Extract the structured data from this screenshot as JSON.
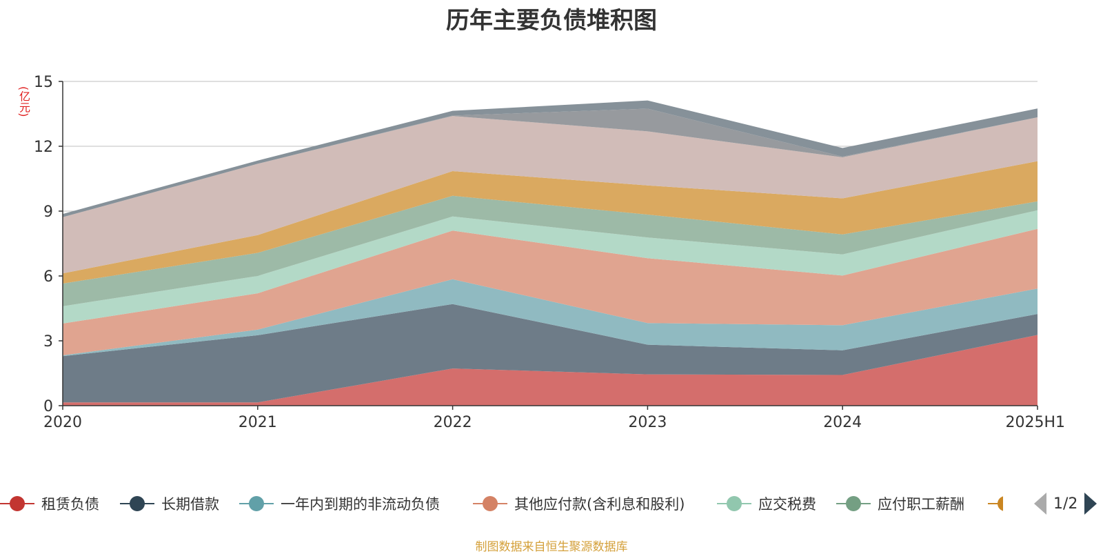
{
  "title": "历年主要负债堆积图",
  "unit": "(亿元)",
  "source": "制图数据来自恒生聚源数据库",
  "pager": {
    "current": "1/2"
  },
  "legend": [
    {
      "name": "租赁负债",
      "color": "#c23531"
    },
    {
      "name": "长期借款",
      "color": "#2f4554"
    },
    {
      "name": "一年内到期的非流动负债",
      "color": "#61a0a8"
    },
    {
      "name": "其他应付款(含利息和股利)",
      "color": "#d48265"
    },
    {
      "name": "应交税费",
      "color": "#91c7ae"
    },
    {
      "name": "应付职工薪酬",
      "color": "#749f83"
    },
    {
      "name": "",
      "color": "#ca8622"
    }
  ],
  "chart_data": {
    "type": "area",
    "stacked": true,
    "categories": [
      "2020",
      "2021",
      "2022",
      "2023",
      "2024",
      "2025H1"
    ],
    "ylim": [
      0,
      15
    ],
    "yticks": [
      0,
      3,
      6,
      9,
      12,
      15
    ],
    "grid": true,
    "legend_position": "bottom",
    "series": [
      {
        "name": "租赁负债",
        "color": "#d46e6c",
        "values": [
          0.15,
          0.15,
          1.72,
          1.45,
          1.42,
          3.27
        ]
      },
      {
        "name": "长期借款",
        "color": "#6e7c88",
        "values": [
          2.14,
          3.11,
          2.98,
          1.37,
          1.14,
          0.97
        ]
      },
      {
        "name": "一年内到期的非流动负债",
        "color": "#90bac1",
        "values": [
          0.04,
          0.26,
          1.15,
          1.0,
          1.16,
          1.18
        ]
      },
      {
        "name": "其他应付款(含利息和股利)",
        "color": "#e0a490",
        "values": [
          1.47,
          1.68,
          2.25,
          3.0,
          2.3,
          2.76
        ]
      },
      {
        "name": "应交税费",
        "color": "#b3d9c7",
        "values": [
          0.8,
          0.8,
          0.65,
          0.96,
          0.98,
          0.86
        ]
      },
      {
        "name": "应付职工薪酬",
        "color": "#9dbaa7",
        "values": [
          1.05,
          1.07,
          0.96,
          1.06,
          0.92,
          0.41
        ]
      },
      {
        "name": "",
        "color": "#daa960",
        "values": [
          0.47,
          0.82,
          1.14,
          1.35,
          1.67,
          1.86
        ]
      },
      {
        "name": "",
        "color": "#d1bcb8",
        "values": [
          2.6,
          3.3,
          2.55,
          2.5,
          1.9,
          2.03
        ]
      },
      {
        "name": "",
        "color": "#979a9e",
        "values": [
          0.0,
          0.0,
          0.02,
          1.05,
          0.03,
          0.0
        ]
      },
      {
        "name": "",
        "color": "#869199",
        "values": [
          0.15,
          0.15,
          0.22,
          0.38,
          0.4,
          0.41
        ]
      }
    ]
  }
}
